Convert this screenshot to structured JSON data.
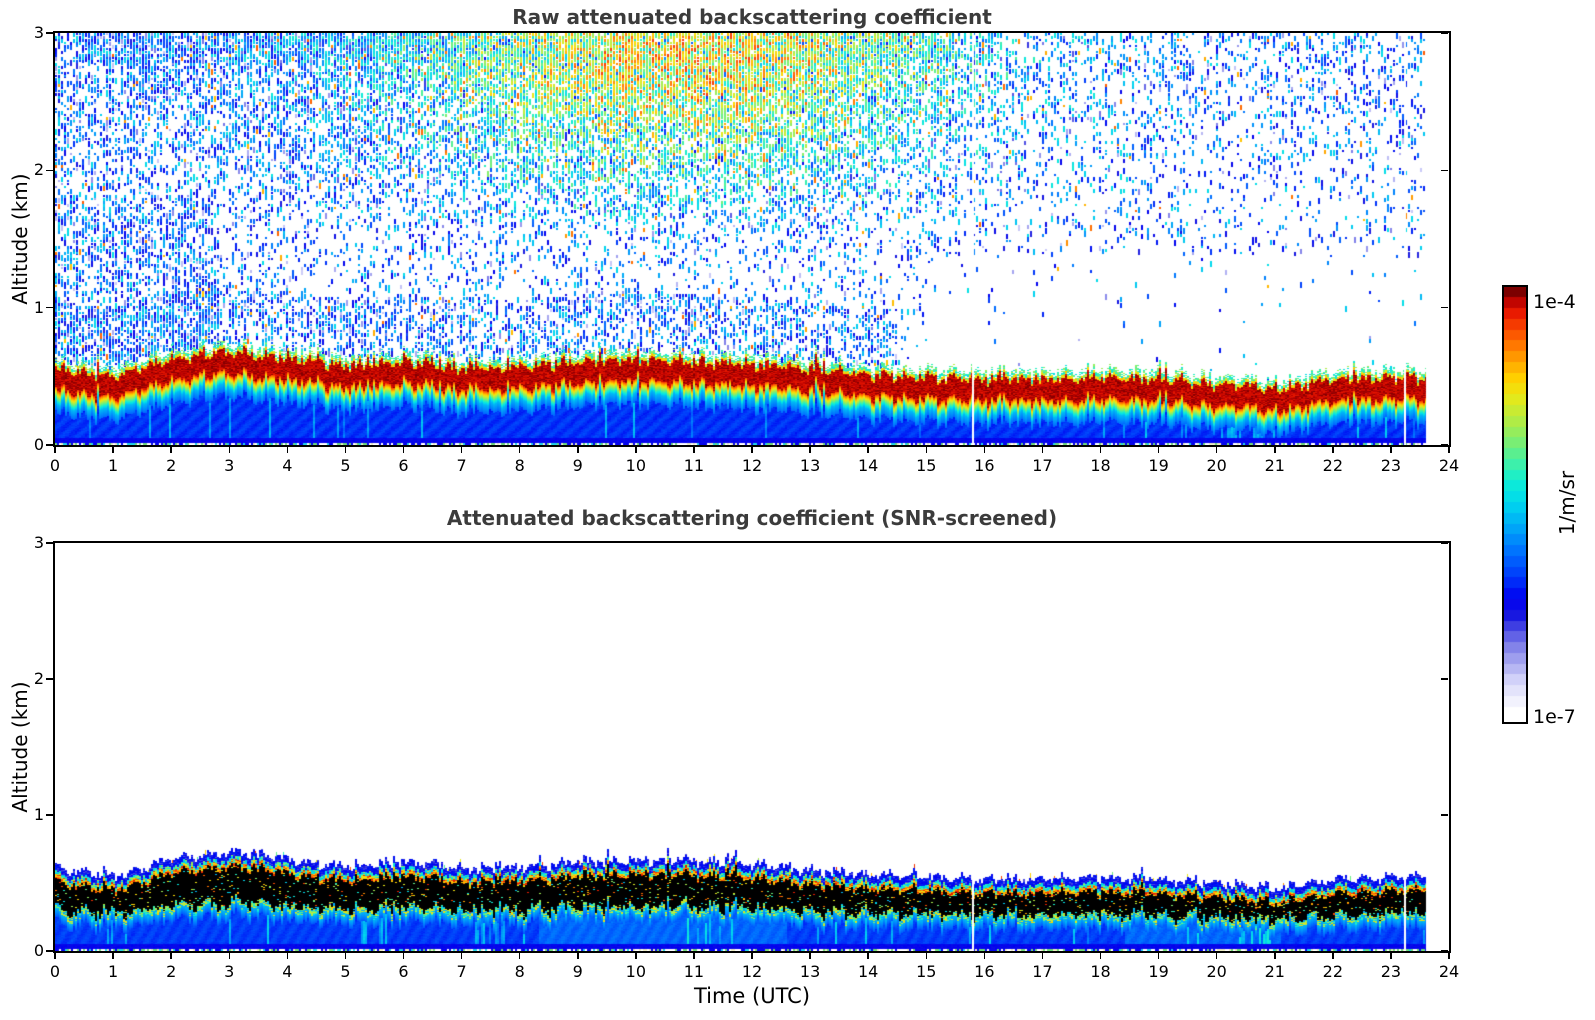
{
  "figure": {
    "background": "#ffffff"
  },
  "colorbar": {
    "label": "1/m/sr",
    "top_label": "1e-4",
    "bottom_label": "1e-7",
    "scale": "log",
    "levels": 40,
    "stops": [
      [
        0.0,
        "#ffffff"
      ],
      [
        0.03,
        "#f0f0fd"
      ],
      [
        0.07,
        "#d8d8fa"
      ],
      [
        0.11,
        "#b0b0f2"
      ],
      [
        0.15,
        "#8888ea"
      ],
      [
        0.19,
        "#5555e4"
      ],
      [
        0.23,
        "#1818e0"
      ],
      [
        0.27,
        "#0000f0"
      ],
      [
        0.32,
        "#0038fa"
      ],
      [
        0.38,
        "#0070ff"
      ],
      [
        0.44,
        "#00a8f8"
      ],
      [
        0.5,
        "#00d8ee"
      ],
      [
        0.55,
        "#10eed4"
      ],
      [
        0.6,
        "#48f0a0"
      ],
      [
        0.65,
        "#84ee6a"
      ],
      [
        0.7,
        "#b8ec40"
      ],
      [
        0.75,
        "#e8e818"
      ],
      [
        0.79,
        "#ffd400"
      ],
      [
        0.83,
        "#ffaa00"
      ],
      [
        0.87,
        "#ff7a00"
      ],
      [
        0.91,
        "#fb4a00"
      ],
      [
        0.95,
        "#e81800"
      ],
      [
        0.98,
        "#b80000"
      ],
      [
        1.0,
        "#7c0000"
      ]
    ]
  },
  "chart_data": [
    {
      "type": "heatmap",
      "title": "Raw attenuated backscattering coefficient",
      "xlabel": "",
      "ylabel": "Altitude (km)",
      "xlim": [
        0,
        24
      ],
      "ylim": [
        0,
        3
      ],
      "x_ticks": [
        0,
        1,
        2,
        3,
        4,
        5,
        6,
        7,
        8,
        9,
        10,
        11,
        12,
        13,
        14,
        15,
        16,
        17,
        18,
        19,
        20,
        21,
        22,
        23,
        24
      ],
      "y_ticks": [
        0,
        1,
        2,
        3
      ],
      "value_scale": {
        "min": 1e-07,
        "max": 0.0001,
        "units": "1/m/sr",
        "scale": "log"
      },
      "data_end_time_utc": 23.6,
      "gap_times_utc": [
        15.8,
        23.25
      ],
      "aerosol_layer": {
        "times_utc": [
          0,
          1,
          2,
          3,
          4,
          5,
          6,
          7,
          8,
          9,
          10,
          11,
          12,
          13,
          14,
          15,
          16,
          17,
          18,
          19,
          20,
          21,
          22,
          23,
          24
        ],
        "top_km": [
          0.56,
          0.5,
          0.63,
          0.68,
          0.63,
          0.57,
          0.61,
          0.56,
          0.57,
          0.61,
          0.62,
          0.61,
          0.59,
          0.55,
          0.51,
          0.5,
          0.48,
          0.48,
          0.49,
          0.48,
          0.45,
          0.41,
          0.48,
          0.49,
          0.49
        ],
        "core_thickness_km": 0.16,
        "description": "Saturated (dark red, ~1e-4) boundary-layer top around 0.4-0.7 km with spiky yellow/green upper fringe; moderate blue backscatter (~1e-6) below the layer down to the surface."
      },
      "noise_region": {
        "t_range_utc": [
          0,
          23.6
        ],
        "z_range_km": [
          0.6,
          3.0
        ],
        "hot_spot": {
          "t_utc": [
            7,
            15
          ],
          "z_km": [
            1.8,
            3.0
          ]
        },
        "description": "Uncorrected photon-noise speckle above the layer: mostly blue/cyan dots, turning dense green-yellow (occasional orange) between ~07-15 UTC above ~1.8 km; much sparser after ~15 UTC, especially below 1.5 km."
      }
    },
    {
      "type": "heatmap",
      "title": "Attenuated backscattering coefficient (SNR-screened)",
      "xlabel": "Time (UTC)",
      "ylabel": "Altitude (km)",
      "xlim": [
        0,
        24
      ],
      "ylim": [
        0,
        3
      ],
      "x_ticks": [
        0,
        1,
        2,
        3,
        4,
        5,
        6,
        7,
        8,
        9,
        10,
        11,
        12,
        13,
        14,
        15,
        16,
        17,
        18,
        19,
        20,
        21,
        22,
        23,
        24
      ],
      "y_ticks": [
        0,
        1,
        2,
        3
      ],
      "value_scale": {
        "min": 1e-07,
        "max": 0.0001,
        "units": "1/m/sr",
        "scale": "log"
      },
      "data_end_time_utc": 23.6,
      "gap_times_utc": [
        15.8,
        23.25
      ],
      "screened": true,
      "saturated_core_color": "#000000",
      "aerosol_layer": {
        "times_utc": [
          0,
          1,
          2,
          3,
          4,
          5,
          6,
          7,
          8,
          9,
          10,
          11,
          12,
          13,
          14,
          15,
          16,
          17,
          18,
          19,
          20,
          21,
          22,
          23,
          24
        ],
        "top_km": [
          0.56,
          0.5,
          0.63,
          0.68,
          0.63,
          0.57,
          0.61,
          0.56,
          0.57,
          0.61,
          0.62,
          0.61,
          0.59,
          0.55,
          0.51,
          0.5,
          0.48,
          0.48,
          0.49,
          0.48,
          0.45,
          0.41,
          0.48,
          0.49,
          0.49
        ],
        "core_thickness_km": 0.18,
        "description": "Low-SNR noise above the layer removed (white). Layer core saturates and is rendered black, rimmed by red/yellow/cyan fringes and a dark-blue outline; smooth blue backscatter below the layer to the surface, with lighter cyan fall streaks near 20-21 UTC."
      }
    }
  ]
}
